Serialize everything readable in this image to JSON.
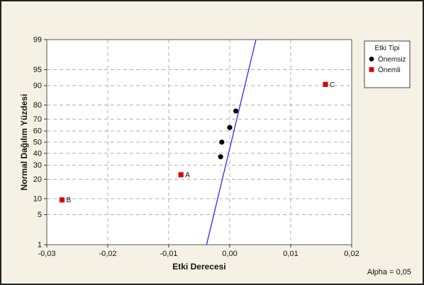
{
  "chart_data": {
    "type": "scatter",
    "xlabel": "Etki Derecesi",
    "ylabel": "Normal Dağılım Yüzdesi",
    "xlim": [
      -0.03,
      0.02
    ],
    "x_ticks": [
      -0.03,
      -0.02,
      -0.01,
      0.0,
      0.01,
      0.02
    ],
    "x_tick_labels": [
      "-0,03",
      "-0,02",
      "-0,01",
      "0,00",
      "0,01",
      "0,02"
    ],
    "y_scale": "normal-probability",
    "ylim": [
      1,
      99
    ],
    "y_ticks": [
      1,
      5,
      10,
      20,
      30,
      40,
      50,
      60,
      70,
      80,
      90,
      95,
      99
    ],
    "grid": true,
    "legend": {
      "title": "Etki Tipi",
      "placement": "right",
      "entries": [
        {
          "name": "Önemsiz",
          "marker": "circle",
          "color": "#000000"
        },
        {
          "name": "Önemli",
          "marker": "square",
          "color": "#e00000"
        }
      ]
    },
    "series": [
      {
        "name": "Önemsiz",
        "marker": "circle",
        "color": "#000000",
        "points": [
          {
            "x": -0.0015,
            "y": 37
          },
          {
            "x": -0.0013,
            "y": 50
          },
          {
            "x": 0.0,
            "y": 63
          },
          {
            "x": 0.001,
            "y": 76
          }
        ]
      },
      {
        "name": "Önemli",
        "marker": "square",
        "color": "#e00000",
        "points": [
          {
            "x": -0.0275,
            "y": 9.5,
            "label": "B"
          },
          {
            "x": -0.008,
            "y": 23,
            "label": "A"
          },
          {
            "x": 0.0157,
            "y": 90.5,
            "label": "C"
          }
        ]
      }
    ],
    "reference_line": {
      "color": "#1a1aff",
      "x_at_y1": -0.0038,
      "x_at_y99": 0.0043
    },
    "annotation": "Alpha = 0,05"
  }
}
